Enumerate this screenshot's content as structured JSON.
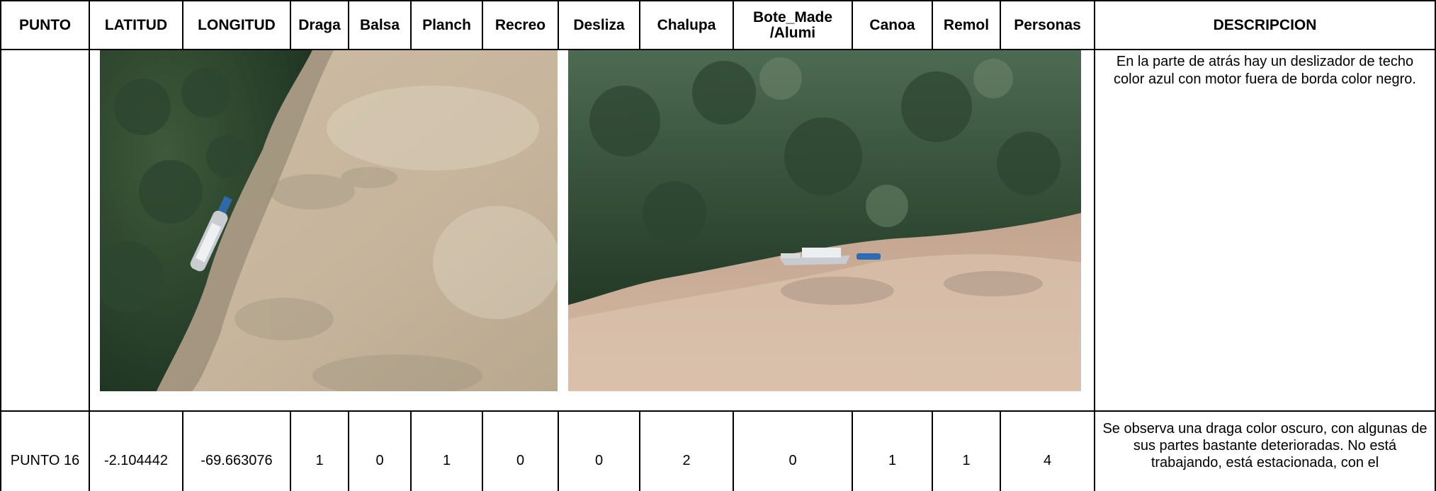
{
  "table": {
    "headers": [
      "PUNTO",
      "LATITUD",
      "LONGITUD",
      "Draga",
      "Balsa",
      "Planch",
      "Recreo",
      "Desliza",
      "Chalupa",
      "Bote_Made /Alumi",
      "Canoa",
      "Remol",
      "Personas",
      "DESCRIPCION"
    ],
    "photo_row": {
      "description": "En la parte de atrás hay un deslizador de techo color azul con motor fuera de borda color negro."
    },
    "rows": [
      [
        "PUNTO 16",
        "-2.104442",
        "-69.663076",
        "1",
        "0",
        "1",
        "0",
        "0",
        "2",
        "0",
        "1",
        "1",
        "4",
        "Se observa una draga color oscuro, con algunas de sus partes bastante deterioradas. No está trabajando, está estacionada, con el"
      ]
    ]
  }
}
